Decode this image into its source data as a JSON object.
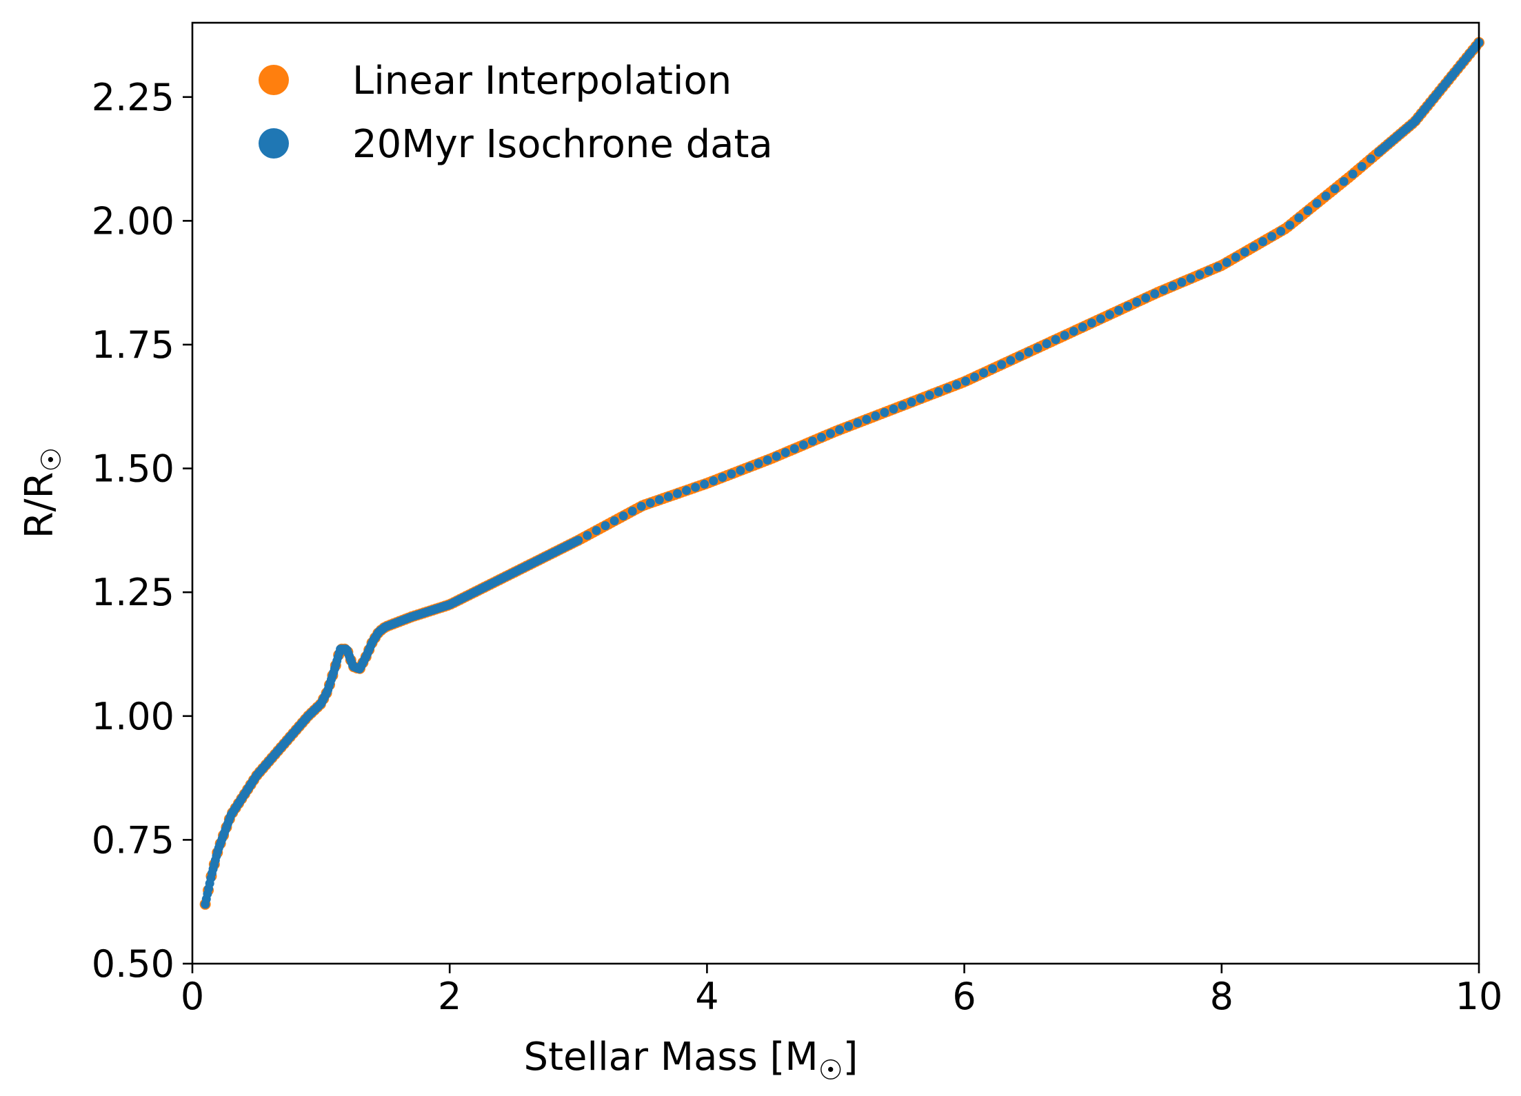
{
  "chart_data": {
    "type": "scatter",
    "xlabel": "Stellar Mass [M",
    "xlabel_sub": "☉",
    "xlabel_end": "]",
    "ylabel": "R/R",
    "ylabel_sub": "☉",
    "xlim": [
      0,
      10
    ],
    "ylim": [
      0.5,
      2.4
    ],
    "x_ticks": [
      0,
      2,
      4,
      6,
      8,
      10
    ],
    "x_tick_labels": [
      "0",
      "2",
      "4",
      "6",
      "8",
      "10"
    ],
    "y_ticks": [
      0.5,
      0.75,
      1.0,
      1.25,
      1.5,
      1.75,
      2.0,
      2.25
    ],
    "y_tick_labels": [
      "0.50",
      "0.75",
      "1.00",
      "1.25",
      "1.50",
      "1.75",
      "2.00",
      "2.25"
    ],
    "grid": false,
    "legend_position": "top-left",
    "colors": {
      "interp": "#ff7f0e",
      "data": "#1f77b4"
    },
    "series": [
      {
        "name": "Linear Interpolation",
        "color": "#ff7f0e",
        "style": "dense-markers",
        "x": [
          0.1,
          0.15,
          0.2,
          0.3,
          0.4,
          0.5,
          0.6,
          0.7,
          0.8,
          0.9,
          1.0,
          1.05,
          1.1,
          1.15,
          1.2,
          1.25,
          1.3,
          1.35,
          1.4,
          1.45,
          1.5,
          1.7,
          2.0,
          2.5,
          3.0,
          3.5,
          4.0,
          4.5,
          5.0,
          5.5,
          6.0,
          6.5,
          7.0,
          7.5,
          8.0,
          8.5,
          9.0,
          9.5,
          10.0
        ],
        "y": [
          0.62,
          0.68,
          0.73,
          0.8,
          0.84,
          0.88,
          0.91,
          0.94,
          0.97,
          1.0,
          1.025,
          1.05,
          1.09,
          1.135,
          1.135,
          1.1,
          1.095,
          1.12,
          1.15,
          1.17,
          1.18,
          1.2,
          1.225,
          1.29,
          1.355,
          1.425,
          1.47,
          1.52,
          1.575,
          1.625,
          1.675,
          1.735,
          1.795,
          1.855,
          1.91,
          1.985,
          2.09,
          2.2,
          2.36
        ]
      },
      {
        "name": "20Myr Isochrone data",
        "color": "#1f77b4",
        "style": "markers",
        "x": [
          0.1,
          0.15,
          0.2,
          0.3,
          0.4,
          0.5,
          0.6,
          0.7,
          0.8,
          0.9,
          1.0,
          1.05,
          1.1,
          1.15,
          1.2,
          1.25,
          1.3,
          1.35,
          1.4,
          1.45,
          1.5,
          1.7,
          2.0,
          2.5,
          3.0,
          3.5,
          4.0,
          4.5,
          5.0,
          5.5,
          6.0,
          6.5,
          7.0,
          7.5,
          8.0,
          8.5,
          9.0,
          9.5,
          10.0
        ],
        "y": [
          0.62,
          0.68,
          0.73,
          0.8,
          0.84,
          0.88,
          0.91,
          0.94,
          0.97,
          1.0,
          1.025,
          1.05,
          1.09,
          1.135,
          1.135,
          1.1,
          1.095,
          1.12,
          1.15,
          1.17,
          1.18,
          1.2,
          1.225,
          1.29,
          1.355,
          1.425,
          1.47,
          1.52,
          1.575,
          1.625,
          1.675,
          1.735,
          1.795,
          1.855,
          1.91,
          1.985,
          2.09,
          2.2,
          2.36
        ]
      }
    ]
  }
}
